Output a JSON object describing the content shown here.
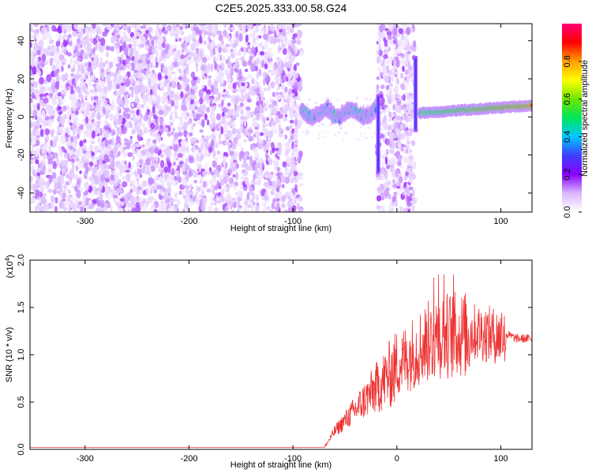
{
  "title": "C2E5.2025.333.00.58.G24",
  "chart_data": [
    {
      "type": "heatmap",
      "xlabel": "Height of straight line (km)",
      "ylabel": "Frequency (Hz)",
      "xlim": [
        -353,
        130
      ],
      "ylim": [
        -50,
        49
      ],
      "x_ticks": [
        -300,
        -200,
        -100,
        0,
        100
      ],
      "x_tick_labels": [
        "-300",
        "-200",
        "-100",
        "",
        "100"
      ],
      "y_ticks": [
        -40,
        -20,
        0,
        20,
        40
      ],
      "colorbar": {
        "label": "Normalized spectral amplitude",
        "range": [
          0,
          1
        ],
        "ticks": [
          0.0,
          0.2,
          0.4,
          0.6,
          0.8
        ],
        "tick_labels": [
          "0.0",
          "0.2",
          "0.4",
          "0.6",
          "0.8"
        ],
        "colors": [
          "#ffffff",
          "#d9b8ff",
          "#8a00ff",
          "#3f3fff",
          "#00c8ff",
          "#00e65c",
          "#6ee600",
          "#ffff00",
          "#ffa000",
          "#ff0000",
          "#ff0077"
        ]
      },
      "regions": [
        {
          "name": "broadband-noise",
          "x_range": [
            -353,
            -92
          ],
          "y_range": [
            -50,
            49
          ]
        },
        {
          "name": "narrow-band",
          "x_range": [
            -92,
            -20
          ],
          "y_center": 2
        },
        {
          "name": "broadband-noise-2",
          "x_range": [
            -19,
            17
          ],
          "y_range": [
            -50,
            49
          ]
        },
        {
          "name": "vertical-spike-1",
          "x": -18,
          "y_range": [
            -30,
            12
          ]
        },
        {
          "name": "vertical-spike-2",
          "x": 18,
          "y_range": [
            -8,
            32
          ]
        },
        {
          "name": "strong-signal",
          "x_range": [
            22,
            130
          ],
          "y_start": 2,
          "y_end": 6
        }
      ]
    },
    {
      "type": "line",
      "xlabel": "Height of straight line (km)",
      "ylabel": "SNR (10 * v/v)",
      "y_multiplier": "(x10",
      "y_multiplier_exp": "4",
      "y_multiplier_close": ")",
      "xlim": [
        -353,
        130
      ],
      "ylim": [
        0,
        2.0
      ],
      "x_ticks": [
        -300,
        -200,
        -100,
        0,
        100
      ],
      "x_tick_labels": [
        "-300",
        "-200",
        "-100",
        "0",
        "100"
      ],
      "y_ticks": [
        0,
        0.5,
        1.0,
        1.5,
        2.0
      ],
      "y_tick_labels": [
        "0.0",
        "0.5",
        "1.0",
        "1.5",
        "2.0"
      ],
      "color": "#ee3333",
      "envelope": [
        {
          "x": -353,
          "y": 0.02
        },
        {
          "x": -70,
          "y": 0.02
        },
        {
          "x": -60,
          "y": 0.2
        },
        {
          "x": -40,
          "y": 0.45
        },
        {
          "x": -20,
          "y": 0.7
        },
        {
          "x": 0,
          "y": 0.95
        },
        {
          "x": 20,
          "y": 1.15
        },
        {
          "x": 40,
          "y": 1.3
        },
        {
          "x": 60,
          "y": 1.3
        },
        {
          "x": 80,
          "y": 1.3
        },
        {
          "x": 100,
          "y": 1.25
        },
        {
          "x": 115,
          "y": 1.18
        },
        {
          "x": 130,
          "y": 1.18
        }
      ]
    }
  ]
}
